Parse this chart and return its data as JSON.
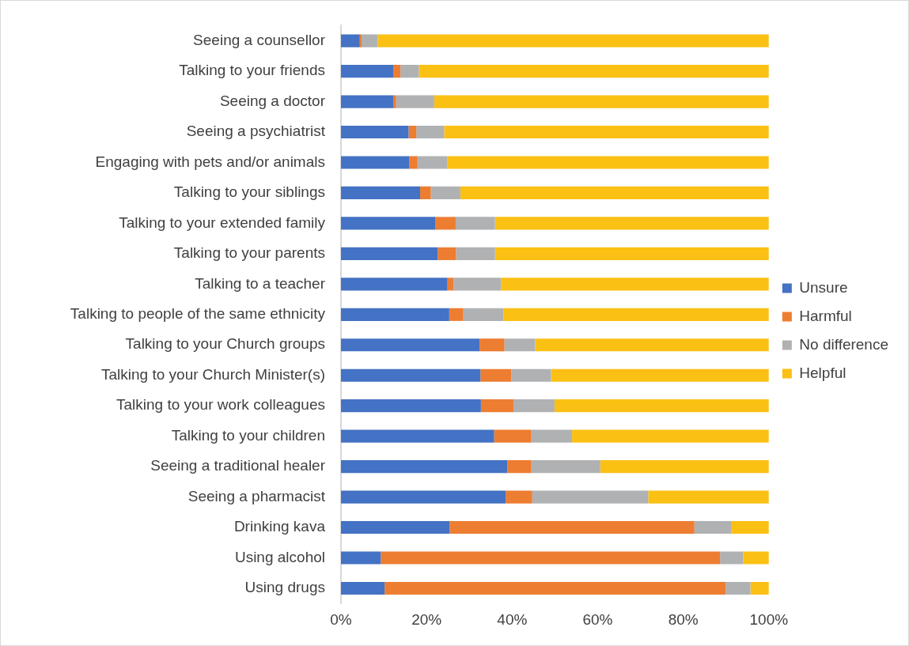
{
  "chart_data": {
    "type": "bar",
    "orientation": "horizontal",
    "stacked": true,
    "categories": [
      "Seeing a counsellor",
      "Talking to your friends",
      "Seeing a doctor",
      "Seeing a psychiatrist",
      "Engaging with pets and/or animals",
      "Talking to your siblings",
      "Talking to your extended family",
      "Talking to your parents",
      "Talking to a teacher",
      "Talking to people of the same ethnicity",
      "Talking to your Church groups",
      "Talking to your Church Minister(s)",
      "Talking to your work colleagues",
      "Talking to your children",
      "Seeing a traditional healer",
      "Seeing a pharmacist",
      "Drinking kava",
      "Using alcohol",
      "Using drugs"
    ],
    "series": [
      {
        "name": "Unsure",
        "color": "#4472c4",
        "values": [
          4.4,
          12.2,
          12.2,
          15.8,
          16,
          18.5,
          22.1,
          22.6,
          24.9,
          25.3,
          32.4,
          32.6,
          32.7,
          35.8,
          38.9,
          38.5,
          25.4,
          9.3,
          10.2
        ]
      },
      {
        "name": "Harmful",
        "color": "#ed7d31",
        "values": [
          0.4,
          1.7,
          0.7,
          1.8,
          1.9,
          2.5,
          4.7,
          4.3,
          1.4,
          3.3,
          5.8,
          7.2,
          7.6,
          8.7,
          5.6,
          6.2,
          57.2,
          79.3,
          79.7
        ]
      },
      {
        "name": "No difference",
        "color": "#b0b1b3",
        "values": [
          3.8,
          4.3,
          8.9,
          6.5,
          6.9,
          6.9,
          9.2,
          9.1,
          11.1,
          9.4,
          7.2,
          9.3,
          9.6,
          9.5,
          16.1,
          27.1,
          8.7,
          5.4,
          5.8
        ]
      },
      {
        "name": "Helpful",
        "color": "#fbc014",
        "values": [
          91.4,
          81.8,
          78.2,
          75.9,
          75.2,
          72.1,
          64,
          64,
          62.6,
          62,
          54.6,
          50.9,
          50.1,
          46,
          39.4,
          28.2,
          8.7,
          6,
          4.3
        ]
      }
    ],
    "xlim": [
      0,
      100
    ],
    "xticks": [
      {
        "value": 0,
        "label": "0%"
      },
      {
        "value": 20,
        "label": "20%"
      },
      {
        "value": 40,
        "label": "40%"
      },
      {
        "value": 60,
        "label": "60%"
      },
      {
        "value": 80,
        "label": "80%"
      },
      {
        "value": 100,
        "label": "100%"
      }
    ],
    "grid": false,
    "legend": "right"
  }
}
